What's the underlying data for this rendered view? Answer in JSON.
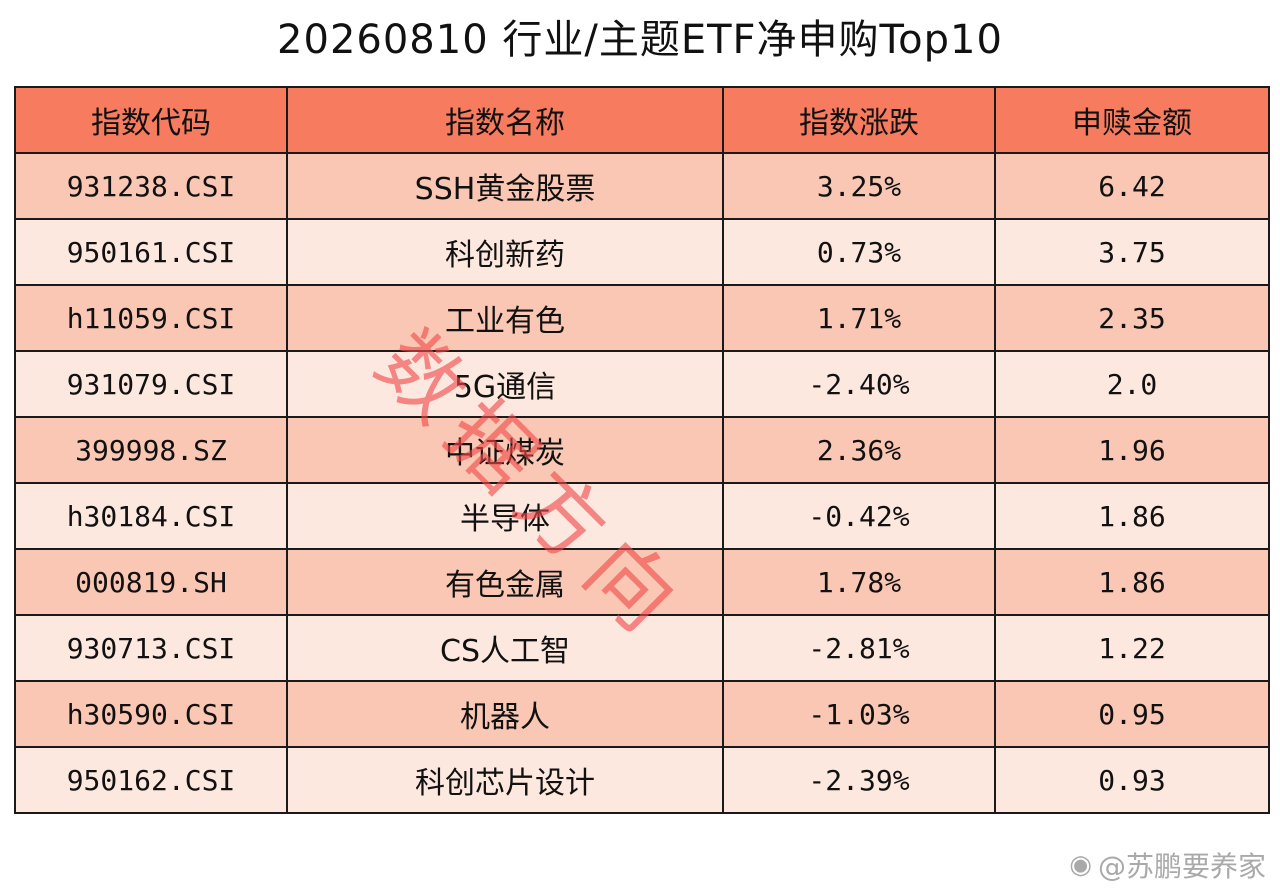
{
  "title": "20260810 行业/主题ETF净申购Top10",
  "headers": [
    "指数代码",
    "指数名称",
    "指数涨跌",
    "申赎金额"
  ],
  "rows": [
    {
      "code": "931238.CSI",
      "name": "SSH黄金股票",
      "change": "3.25%",
      "amount": "6.42"
    },
    {
      "code": "950161.CSI",
      "name": "科创新药",
      "change": "0.73%",
      "amount": "3.75"
    },
    {
      "code": "h11059.CSI",
      "name": "工业有色",
      "change": "1.71%",
      "amount": "2.35"
    },
    {
      "code": "931079.CSI",
      "name": "5G通信",
      "change": "-2.40%",
      "amount": "2.0"
    },
    {
      "code": "399998.SZ",
      "name": "中证煤炭",
      "change": "2.36%",
      "amount": "1.96"
    },
    {
      "code": "h30184.CSI",
      "name": "半导体",
      "change": "-0.42%",
      "amount": "1.86"
    },
    {
      "code": "000819.SH",
      "name": "有色金属",
      "change": "1.78%",
      "amount": "1.86"
    },
    {
      "code": "930713.CSI",
      "name": "CS人工智",
      "change": "-2.81%",
      "amount": "1.22"
    },
    {
      "code": "h30590.CSI",
      "name": "机器人",
      "change": "-1.03%",
      "amount": "0.95"
    },
    {
      "code": "950162.CSI",
      "name": "科创芯片设计",
      "change": "-2.39%",
      "amount": "0.93"
    }
  ],
  "watermark": "数据方向",
  "credit": "@苏鹏要养家",
  "icons": {
    "credit_icon": "weibo-icon"
  },
  "colors": {
    "header_bg": "#f77b5e",
    "row_odd_bg": "#f9c7b3",
    "row_even_bg": "#fde8df",
    "watermark": "#ef4848"
  }
}
